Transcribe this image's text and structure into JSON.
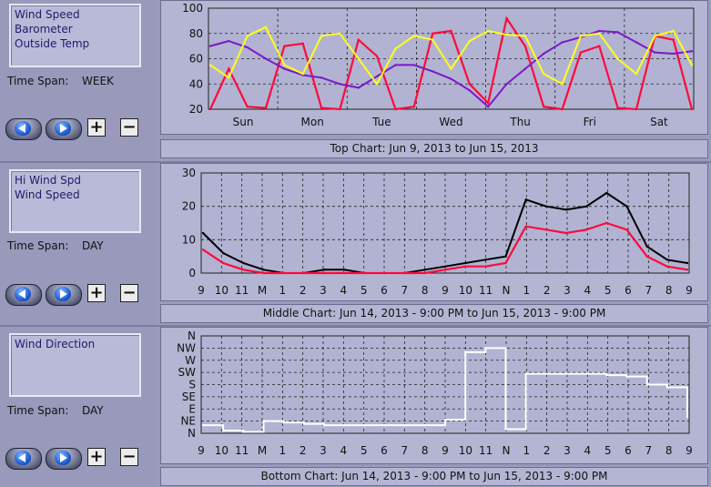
{
  "colors": {
    "background": "#9a9bbd",
    "plot_bg": "#b4b5d3",
    "wind_speed": "#ff0a3c",
    "barometer": "#7d18c8",
    "outside_temp": "#ffff1e",
    "hi_wind": "#000000",
    "wind_direction": "#ffffff"
  },
  "panels": [
    {
      "legend": [
        "Wind Speed",
        "Barometer",
        "Outside Temp"
      ],
      "time_span_label": "Time Span:",
      "time_span_value": "WEEK",
      "chart_title": "Top Chart:  Jun 9, 2013  to  Jun 15, 2013"
    },
    {
      "legend": [
        "Hi Wind Spd",
        "Wind Speed"
      ],
      "time_span_label": "Time Span:",
      "time_span_value": "DAY",
      "chart_title": "Middle Chart:  Jun 14, 2013 - 9:00 PM  to  Jun 15, 2013 - 9:00 PM"
    },
    {
      "legend": [
        "Wind Direction"
      ],
      "time_span_label": "Time Span:",
      "time_span_value": "DAY",
      "chart_title": "Bottom Chart:  Jun 14, 2013 - 9:00 PM  to  Jun 15, 2013 - 9:00 PM"
    }
  ],
  "controls": {
    "prev_icon": "left-arrow-icon",
    "next_icon": "right-arrow-icon",
    "zoom_in": "+",
    "zoom_out": "−"
  },
  "chart_data": [
    {
      "type": "line",
      "x_ticks": [
        "Sun",
        "Mon",
        "Tue",
        "Wed",
        "Thu",
        "Fri",
        "Sat"
      ],
      "y_ticks": [
        20,
        40,
        60,
        80,
        100
      ],
      "ylim": [
        20,
        100
      ],
      "grid": true,
      "series": [
        {
          "name": "Wind Speed",
          "color": "#ff0a3c",
          "values": [
            20,
            52,
            22,
            21,
            70,
            72,
            21,
            20,
            75,
            62,
            20,
            22,
            80,
            82,
            40,
            25,
            92,
            70,
            22,
            20,
            65,
            70,
            21,
            20,
            78,
            75,
            20
          ]
        },
        {
          "name": "Barometer",
          "color": "#7d18c8",
          "values": [
            70,
            74,
            69,
            60,
            52,
            47,
            45,
            40,
            37,
            46,
            55,
            55,
            50,
            44,
            35,
            22,
            40,
            52,
            64,
            73,
            77,
            82,
            81,
            73,
            65,
            64,
            66
          ]
        },
        {
          "name": "Outside Temp",
          "color": "#ffff1e",
          "values": [
            55,
            45,
            78,
            85,
            55,
            48,
            78,
            80,
            60,
            40,
            68,
            78,
            75,
            52,
            74,
            82,
            79,
            78,
            48,
            40,
            78,
            80,
            60,
            48,
            78,
            82,
            55
          ]
        }
      ]
    },
    {
      "type": "line",
      "x_ticks": [
        "9",
        "10",
        "11",
        "M",
        "1",
        "2",
        "3",
        "4",
        "5",
        "6",
        "7",
        "8",
        "9",
        "10",
        "11",
        "N",
        "1",
        "2",
        "3",
        "4",
        "5",
        "6",
        "7",
        "8",
        "9"
      ],
      "y_ticks": [
        0,
        10,
        20,
        30
      ],
      "ylim": [
        0,
        30
      ],
      "grid": true,
      "series": [
        {
          "name": "Hi Wind Spd",
          "color": "#000000",
          "values": [
            12,
            6,
            3,
            1,
            0,
            0,
            1,
            1,
            0,
            0,
            0,
            1,
            2,
            3,
            4,
            5,
            22,
            20,
            19,
            20,
            24,
            20,
            8,
            4,
            3
          ]
        },
        {
          "name": "Wind Speed",
          "color": "#ff0a3c",
          "values": [
            7,
            3,
            1,
            0,
            0,
            0,
            0,
            0,
            0,
            0,
            0,
            0,
            1,
            2,
            2,
            3,
            14,
            13,
            12,
            13,
            15,
            13,
            5,
            2,
            1
          ]
        }
      ]
    },
    {
      "type": "line",
      "x_ticks": [
        "9",
        "10",
        "11",
        "M",
        "1",
        "2",
        "3",
        "4",
        "5",
        "6",
        "7",
        "8",
        "9",
        "10",
        "11",
        "N",
        "1",
        "2",
        "3",
        "4",
        "5",
        "6",
        "7",
        "8",
        "9"
      ],
      "y_ticks": [
        "N",
        "NE",
        "E",
        "SE",
        "S",
        "SW",
        "W",
        "NW",
        "N"
      ],
      "grid": true,
      "series": [
        {
          "name": "Wind Direction",
          "color": "#ffffff",
          "values": [
            30,
            10,
            5,
            45,
            40,
            35,
            30,
            30,
            30,
            30,
            30,
            30,
            50,
            300,
            315,
            15,
            220,
            220,
            220,
            220,
            215,
            210,
            180,
            170,
            60
          ]
        }
      ]
    }
  ]
}
